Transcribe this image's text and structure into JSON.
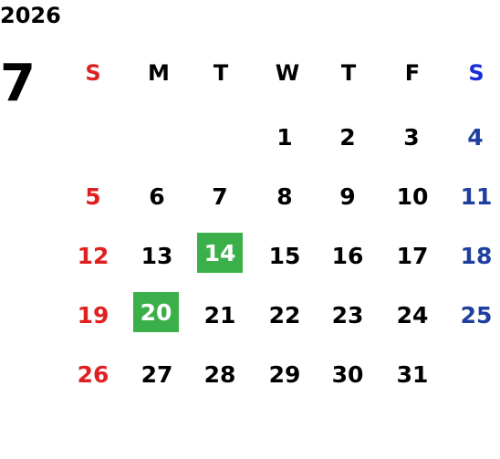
{
  "calendar": {
    "year": "2026",
    "month": "7",
    "weekdays": [
      "S",
      "M",
      "T",
      "W",
      "T",
      "F",
      "S"
    ],
    "weeks": [
      [
        "",
        "",
        "",
        "1",
        "2",
        "3",
        "4"
      ],
      [
        "5",
        "6",
        "7",
        "8",
        "9",
        "10",
        "11"
      ],
      [
        "12",
        "13",
        "14",
        "15",
        "16",
        "17",
        "18"
      ],
      [
        "19",
        "20",
        "21",
        "22",
        "23",
        "24",
        "25"
      ],
      [
        "26",
        "27",
        "28",
        "29",
        "30",
        "31",
        ""
      ]
    ],
    "highlighted_days": [
      "14",
      "20"
    ],
    "colors": {
      "sunday": "#e02020",
      "saturday_header": "#1a2ed8",
      "saturday": "#1f3f9e",
      "highlight": "#3bb04a",
      "text": "#000000"
    }
  }
}
